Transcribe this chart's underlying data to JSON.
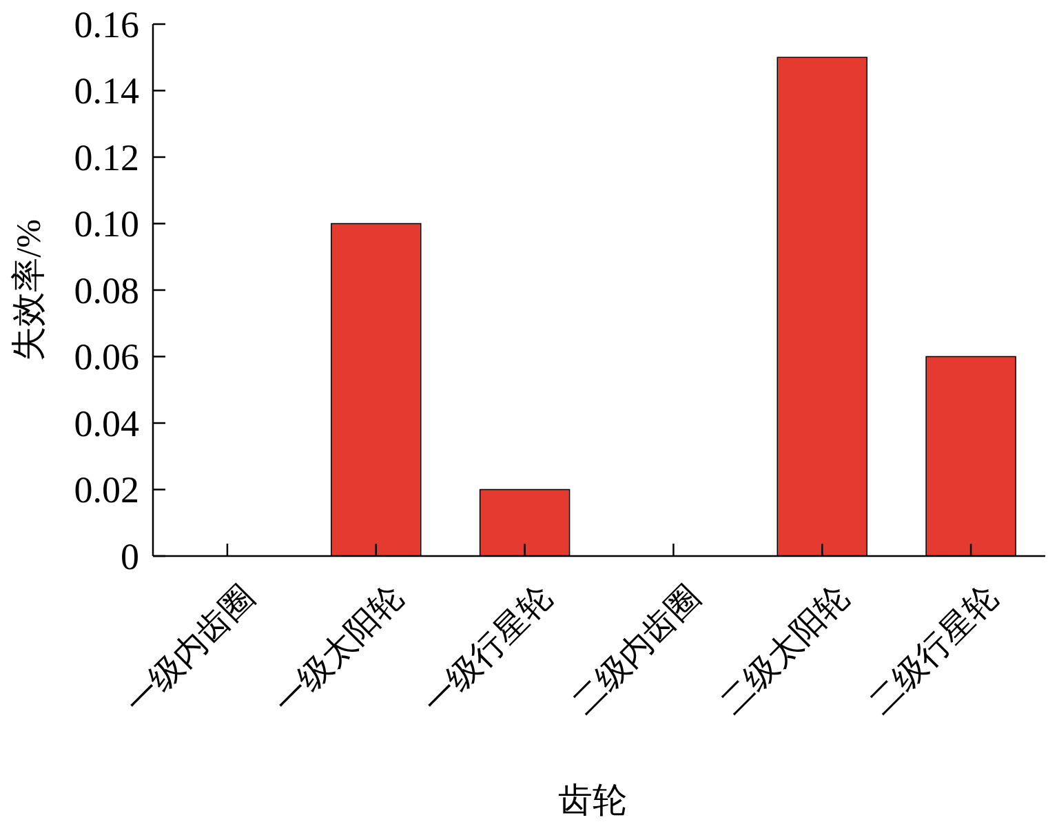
{
  "chart_data": {
    "type": "bar",
    "xlabel": "齿轮",
    "ylabel": "失效率/%",
    "categories": [
      "一级内齿圈",
      "一级太阳轮",
      "一级行星轮",
      "二级内齿圈",
      "二级太阳轮",
      "二级行星轮"
    ],
    "values": [
      0,
      0.1,
      0.02,
      0,
      0.15,
      0.06
    ],
    "color": "#e53a2f",
    "ylim": [
      0,
      0.16
    ],
    "yticks": [
      {
        "value": 0,
        "label": "0"
      },
      {
        "value": 0.02,
        "label": "0.02"
      },
      {
        "value": 0.04,
        "label": "0.04"
      },
      {
        "value": 0.06,
        "label": "0.06"
      },
      {
        "value": 0.08,
        "label": "0.08"
      },
      {
        "value": 0.1,
        "label": "0.10"
      },
      {
        "value": 0.12,
        "label": "0.12"
      },
      {
        "value": 0.14,
        "label": "0.14"
      },
      {
        "value": 0.16,
        "label": "0.16"
      }
    ]
  }
}
